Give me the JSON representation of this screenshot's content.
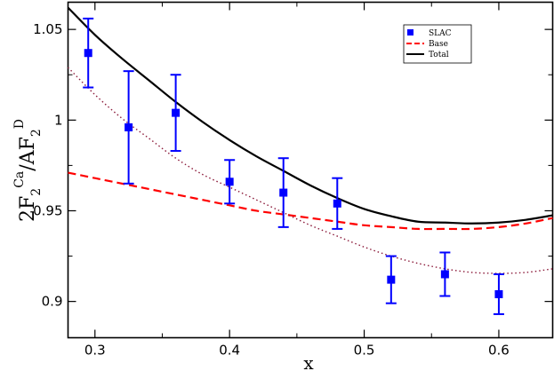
{
  "chart_data": {
    "type": "scatter",
    "xlabel": "x",
    "ylabel": {
      "base": "2F",
      "sub1": "2",
      "sup1": "Ca",
      "mid": "/AF",
      "sub2": "2",
      "sup2": "D"
    },
    "xlim": [
      0.28,
      0.64
    ],
    "ylim": [
      0.88,
      1.065
    ],
    "xticks": [
      0.3,
      0.4,
      0.5,
      0.6
    ],
    "yticks": [
      0.9,
      0.95,
      1,
      1.05
    ],
    "xtick_labels": [
      "0.3",
      "0.4",
      "0.5",
      "0.6"
    ],
    "ytick_labels": [
      "0.9",
      "0.95",
      "1",
      "1.05"
    ],
    "grid": false,
    "legend_position": "top-right",
    "colors": {
      "slac": "#0000ff",
      "base": "#ff0000",
      "total": "#000000",
      "dotted": "#8b1a3a"
    },
    "legend": [
      {
        "key": "slac",
        "label": "SLAC"
      },
      {
        "key": "base",
        "label": "Base"
      },
      {
        "key": "total",
        "label": "Total"
      }
    ],
    "points": {
      "name": "SLAC",
      "x": [
        0.295,
        0.325,
        0.36,
        0.4,
        0.44,
        0.48,
        0.52,
        0.56,
        0.6
      ],
      "y": [
        1.037,
        0.996,
        1.004,
        0.966,
        0.96,
        0.954,
        0.912,
        0.915,
        0.904
      ],
      "err": [
        0.019,
        0.031,
        0.021,
        0.012,
        0.019,
        0.014,
        0.013,
        0.012,
        0.011
      ]
    },
    "lines": [
      {
        "key": "total",
        "style": "solid",
        "x": [
          0.28,
          0.3,
          0.32,
          0.34,
          0.36,
          0.38,
          0.4,
          0.42,
          0.44,
          0.46,
          0.48,
          0.5,
          0.52,
          0.54,
          0.56,
          0.58,
          0.6,
          0.62,
          0.64
        ],
        "y": [
          1.062,
          1.047,
          1.034,
          1.022,
          1.01,
          0.999,
          0.989,
          0.98,
          0.972,
          0.964,
          0.957,
          0.951,
          0.947,
          0.944,
          0.9435,
          0.943,
          0.9435,
          0.945,
          0.9475
        ]
      },
      {
        "key": "base",
        "style": "dashed",
        "x": [
          0.28,
          0.3,
          0.32,
          0.34,
          0.36,
          0.38,
          0.4,
          0.42,
          0.44,
          0.46,
          0.48,
          0.5,
          0.52,
          0.54,
          0.56,
          0.58,
          0.6,
          0.62,
          0.64
        ],
        "y": [
          0.971,
          0.968,
          0.965,
          0.962,
          0.959,
          0.956,
          0.953,
          0.95,
          0.948,
          0.946,
          0.944,
          0.942,
          0.941,
          0.94,
          0.94,
          0.94,
          0.941,
          0.943,
          0.946
        ]
      },
      {
        "key": "dotted",
        "style": "dotted",
        "x": [
          0.28,
          0.3,
          0.32,
          0.34,
          0.36,
          0.38,
          0.4,
          0.42,
          0.44,
          0.46,
          0.48,
          0.5,
          0.52,
          0.54,
          0.56,
          0.58,
          0.6,
          0.62,
          0.64
        ],
        "y": [
          1.029,
          1.014,
          1.001,
          0.99,
          0.979,
          0.97,
          0.963,
          0.956,
          0.949,
          0.942,
          0.936,
          0.93,
          0.925,
          0.921,
          0.918,
          0.916,
          0.9155,
          0.916,
          0.918
        ]
      }
    ]
  }
}
